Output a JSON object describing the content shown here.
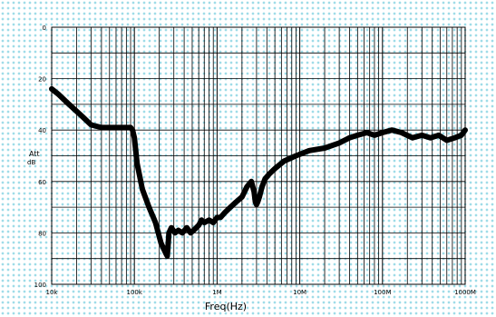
{
  "chart_data": {
    "type": "line",
    "title": "",
    "xlabel": "Freq(Hz)",
    "ylabel": "Att",
    "ylabel_unit": "dB",
    "x_scale": "log",
    "xlim": [
      10000,
      1000000000
    ],
    "ylim": [
      0,
      100
    ],
    "y_inverted": true,
    "grid": true,
    "x_ticks": [
      "10k",
      "100k",
      "1M",
      "10M",
      "100M",
      "1000M"
    ],
    "y_ticks": [
      "0",
      "20",
      "40",
      "60",
      "80",
      "100"
    ],
    "series": [
      {
        "color": "#000000",
        "x": [
          10000,
          12000,
          15000,
          19000,
          24000,
          30000,
          40000,
          55000,
          75000,
          90000,
          95000,
          100000,
          108000,
          125000,
          150000,
          180000,
          210000,
          240000,
          250000,
          262000,
          280000,
          310000,
          340000,
          380000,
          430000,
          480000,
          520000,
          560000,
          600000,
          650000,
          700000,
          800000,
          900000,
          1000000,
          1100000,
          1250000,
          1450000,
          1700000,
          2000000,
          2300000,
          2600000,
          2800000,
          2900000,
          3000000,
          3100000,
          3250000,
          3500000,
          3800000,
          4300000,
          5000000,
          6500000,
          9000000,
          13000000,
          20000000,
          30000000,
          40000000,
          50000000,
          65000000,
          80000000,
          100000000,
          130000000,
          170000000,
          230000000,
          300000000,
          380000000,
          480000000,
          600000000,
          750000000,
          900000000,
          1000000000
        ],
        "y": [
          24,
          26,
          29,
          32,
          35,
          38,
          39,
          39,
          39,
          39,
          40,
          43,
          53,
          63,
          70,
          76,
          84,
          88,
          89,
          80,
          78,
          80,
          79,
          80,
          78,
          80,
          79,
          78,
          77,
          75,
          76,
          75,
          76,
          74,
          74,
          72,
          70,
          68,
          66,
          62,
          60,
          64,
          68,
          69,
          68,
          66,
          62,
          59,
          57,
          55,
          52,
          50,
          48,
          47,
          45,
          43,
          42,
          41,
          42,
          41,
          40,
          41,
          43,
          42,
          43,
          42,
          44,
          43,
          42,
          40
        ]
      }
    ]
  }
}
